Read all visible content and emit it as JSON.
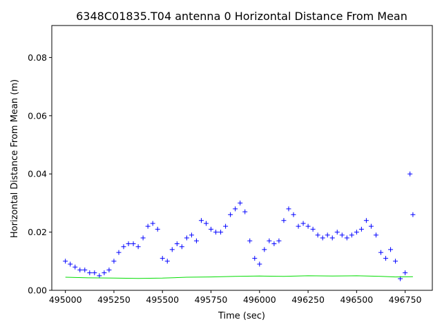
{
  "chart_data": {
    "type": "scatter",
    "title": "6348C01835.T04 antenna 0 Horizontal Distance From Mean",
    "xlabel": "Time (sec)",
    "ylabel": "Horizontal Distance From Mean (m)",
    "xlim": [
      494930,
      496890
    ],
    "ylim": [
      0.0,
      0.091
    ],
    "xticks": [
      495000,
      495250,
      495500,
      495750,
      496000,
      496250,
      496500,
      496750
    ],
    "xtick_labels": [
      "495000",
      "495250",
      "495500",
      "495750",
      "496000",
      "496250",
      "496500",
      "496750"
    ],
    "yticks": [
      0.0,
      0.02,
      0.04,
      0.06,
      0.08
    ],
    "ytick_labels": [
      "0.00",
      "0.02",
      "0.04",
      "0.06",
      "0.08"
    ],
    "grid": false,
    "series": [
      {
        "marker": "+",
        "color": "#0000ff",
        "x": [
          495000,
          495025,
          495050,
          495075,
          495100,
          495125,
          495150,
          495175,
          495200,
          495225,
          495250,
          495275,
          495300,
          495325,
          495350,
          495375,
          495400,
          495425,
          495450,
          495475,
          495500,
          495525,
          495550,
          495575,
          495600,
          495625,
          495650,
          495675,
          495700,
          495725,
          495750,
          495775,
          495800,
          495825,
          495850,
          495875,
          495900,
          495925,
          495950,
          495975,
          496000,
          496025,
          496050,
          496075,
          496100,
          496125,
          496150,
          496175,
          496200,
          496225,
          496250,
          496275,
          496300,
          496325,
          496350,
          496375,
          496400,
          496425,
          496450,
          496475,
          496500,
          496525,
          496550,
          496575,
          496600,
          496625,
          496650,
          496675,
          496700,
          496725,
          496750,
          496775,
          496790
        ],
        "y": [
          0.01,
          0.009,
          0.008,
          0.007,
          0.007,
          0.006,
          0.006,
          0.005,
          0.006,
          0.007,
          0.01,
          0.013,
          0.015,
          0.016,
          0.016,
          0.015,
          0.018,
          0.022,
          0.023,
          0.021,
          0.011,
          0.01,
          0.014,
          0.016,
          0.015,
          0.018,
          0.019,
          0.017,
          0.024,
          0.023,
          0.021,
          0.02,
          0.02,
          0.022,
          0.026,
          0.028,
          0.03,
          0.027,
          0.017,
          0.011,
          0.009,
          0.014,
          0.017,
          0.016,
          0.017,
          0.024,
          0.028,
          0.026,
          0.022,
          0.023,
          0.022,
          0.021,
          0.019,
          0.018,
          0.019,
          0.018,
          0.02,
          0.019,
          0.018,
          0.019,
          0.02,
          0.021,
          0.024,
          0.022,
          0.019,
          0.013,
          0.011,
          0.014,
          0.01,
          0.004,
          0.006,
          0.04,
          0.026
        ]
      },
      {
        "marker": "line",
        "color": "#00dd00",
        "x": [
          495000,
          495125,
          495250,
          495375,
          495500,
          495625,
          495750,
          495875,
          496000,
          496125,
          496250,
          496375,
          496500,
          496625,
          496700,
          496790
        ],
        "y": [
          0.0045,
          0.0043,
          0.0042,
          0.0041,
          0.0042,
          0.0045,
          0.0046,
          0.0048,
          0.0049,
          0.0048,
          0.005,
          0.0049,
          0.005,
          0.0048,
          0.0046,
          0.0047
        ]
      }
    ]
  }
}
